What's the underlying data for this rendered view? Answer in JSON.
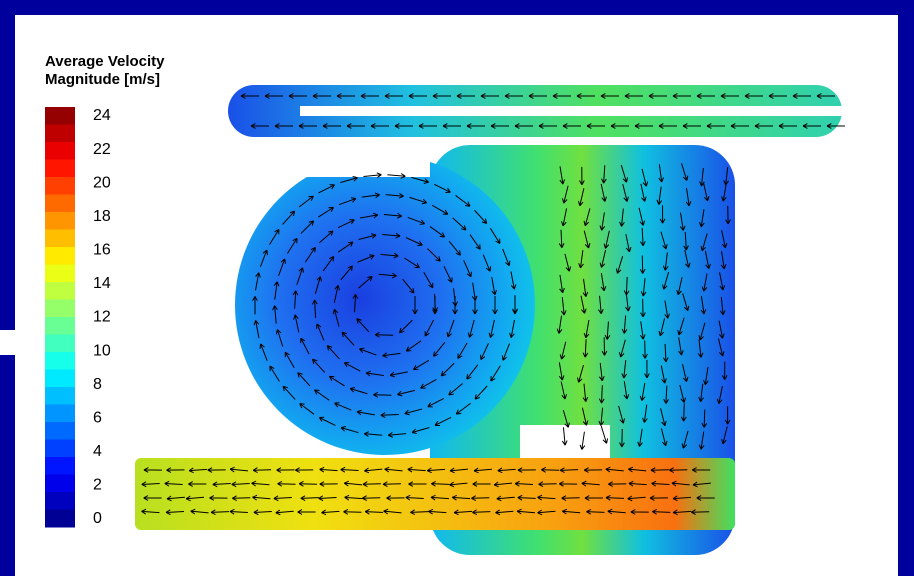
{
  "legend": {
    "title": [
      "Average Velocity",
      "Magnitude [m/s]"
    ],
    "ticks": [
      24,
      22,
      20,
      18,
      16,
      14,
      12,
      10,
      8,
      6,
      4,
      2,
      0
    ]
  }
}
